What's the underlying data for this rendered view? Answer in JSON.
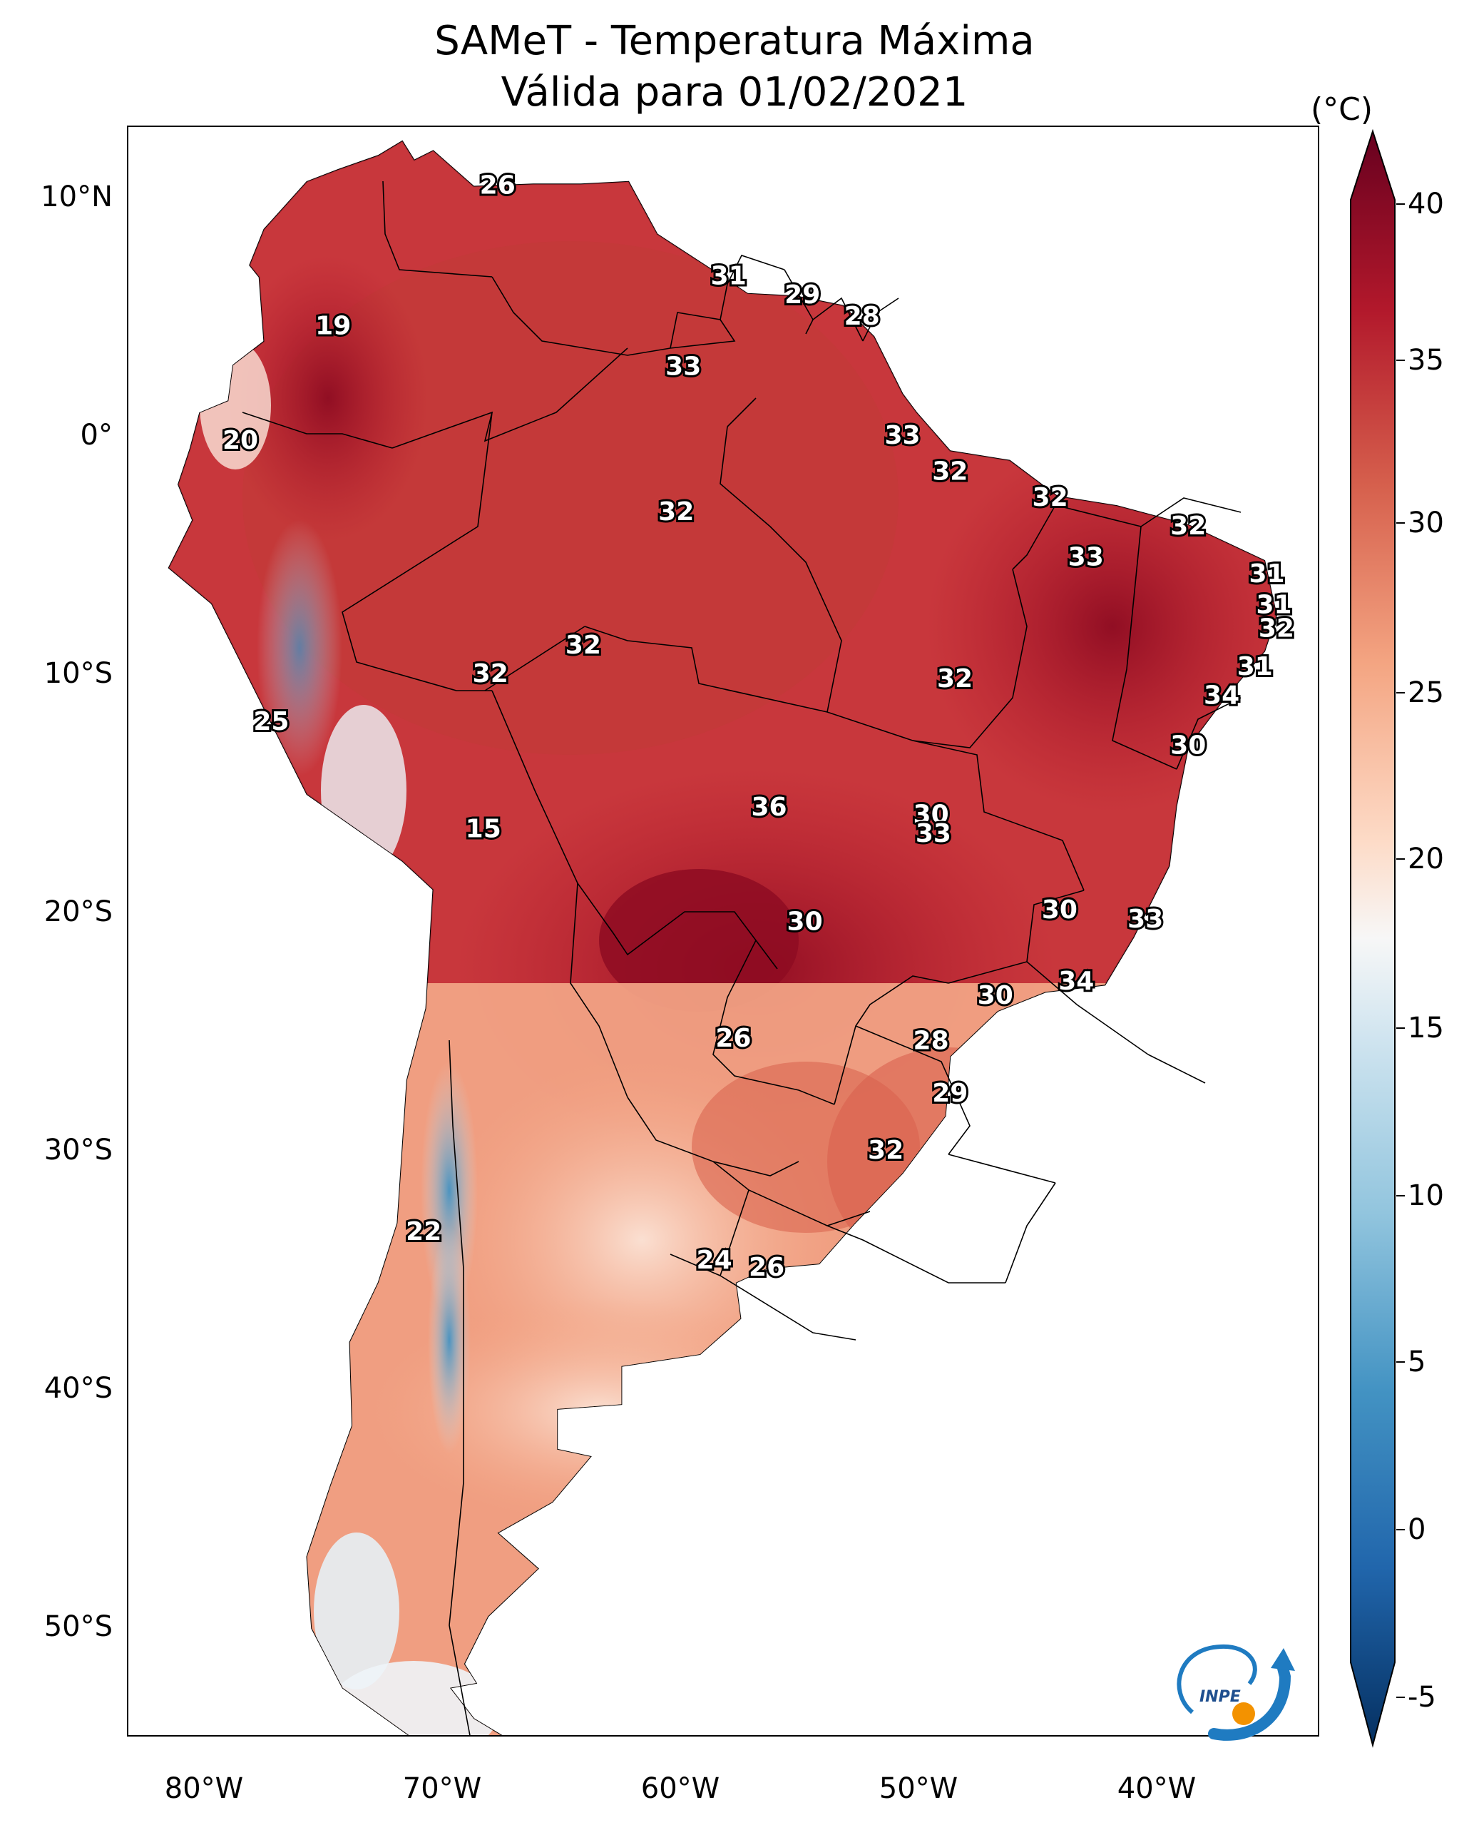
{
  "title": {
    "line1": "SAMeT - Temperatura Máxima",
    "line2": "Válida para 01/02/2021"
  },
  "latitude_labels": [
    "10°N",
    "0°",
    "10°S",
    "20°S",
    "30°S",
    "40°S",
    "50°S"
  ],
  "longitude_labels": [
    "80°W",
    "70°W",
    "60°W",
    "50°W",
    "40°W"
  ],
  "colorbar": {
    "unit": "(°C)",
    "tick_labels": [
      "40",
      "35",
      "30",
      "25",
      "20",
      "15",
      "10",
      "5",
      "0",
      "-5"
    ],
    "range": [
      -5,
      40
    ],
    "colors": {
      "max": "#67001f",
      "high": "#b2182b",
      "warm": "#d6604d",
      "mild": "#f4a582",
      "light": "#fddbc7",
      "neutral": "#f7f7f7",
      "cool": "#d1e5f0",
      "cold": "#92c5de",
      "colder": "#4393c3",
      "coldest": "#2166ac",
      "min": "#053061"
    }
  },
  "point_values": [
    {
      "lon": -67.5,
      "lat": 10.5,
      "value": "26"
    },
    {
      "lon": -57.8,
      "lat": 6.7,
      "value": "31"
    },
    {
      "lon": -54.7,
      "lat": 5.9,
      "value": "29"
    },
    {
      "lon": -52.2,
      "lat": 5.0,
      "value": "28"
    },
    {
      "lon": -74.4,
      "lat": 4.6,
      "value": "19"
    },
    {
      "lon": -59.7,
      "lat": 2.9,
      "value": "33"
    },
    {
      "lon": -78.3,
      "lat": -0.2,
      "value": "20"
    },
    {
      "lon": -50.5,
      "lat": 0.0,
      "value": "33"
    },
    {
      "lon": -48.5,
      "lat": -1.5,
      "value": "32"
    },
    {
      "lon": -44.3,
      "lat": -2.6,
      "value": "32"
    },
    {
      "lon": -60.0,
      "lat": -3.2,
      "value": "32"
    },
    {
      "lon": -38.5,
      "lat": -3.8,
      "value": "32"
    },
    {
      "lon": -42.8,
      "lat": -5.1,
      "value": "33"
    },
    {
      "lon": -35.2,
      "lat": -5.8,
      "value": "31"
    },
    {
      "lon": -34.9,
      "lat": -7.1,
      "value": "31"
    },
    {
      "lon": -34.8,
      "lat": -8.1,
      "value": "32"
    },
    {
      "lon": -63.9,
      "lat": -8.8,
      "value": "32"
    },
    {
      "lon": -67.8,
      "lat": -10.0,
      "value": "32"
    },
    {
      "lon": -48.3,
      "lat": -10.2,
      "value": "32"
    },
    {
      "lon": -35.7,
      "lat": -9.7,
      "value": "31"
    },
    {
      "lon": -37.1,
      "lat": -10.9,
      "value": "34"
    },
    {
      "lon": -77.0,
      "lat": -12.0,
      "value": "25"
    },
    {
      "lon": -38.5,
      "lat": -13.0,
      "value": "30"
    },
    {
      "lon": -56.1,
      "lat": -15.6,
      "value": "36"
    },
    {
      "lon": -49.3,
      "lat": -15.9,
      "value": "30"
    },
    {
      "lon": -49.2,
      "lat": -16.7,
      "value": "33"
    },
    {
      "lon": -68.1,
      "lat": -16.5,
      "value": "15"
    },
    {
      "lon": -43.9,
      "lat": -19.9,
      "value": "30"
    },
    {
      "lon": -40.3,
      "lat": -20.3,
      "value": "33"
    },
    {
      "lon": -54.6,
      "lat": -20.4,
      "value": "30"
    },
    {
      "lon": -43.2,
      "lat": -22.9,
      "value": "34"
    },
    {
      "lon": -46.6,
      "lat": -23.5,
      "value": "30"
    },
    {
      "lon": -57.6,
      "lat": -25.3,
      "value": "26"
    },
    {
      "lon": -49.3,
      "lat": -25.4,
      "value": "28"
    },
    {
      "lon": -48.5,
      "lat": -27.6,
      "value": "29"
    },
    {
      "lon": -51.2,
      "lat": -30.0,
      "value": "32"
    },
    {
      "lon": -70.6,
      "lat": -33.4,
      "value": "22"
    },
    {
      "lon": -58.4,
      "lat": -34.6,
      "value": "24"
    },
    {
      "lon": -56.2,
      "lat": -34.9,
      "value": "26"
    }
  ]
}
